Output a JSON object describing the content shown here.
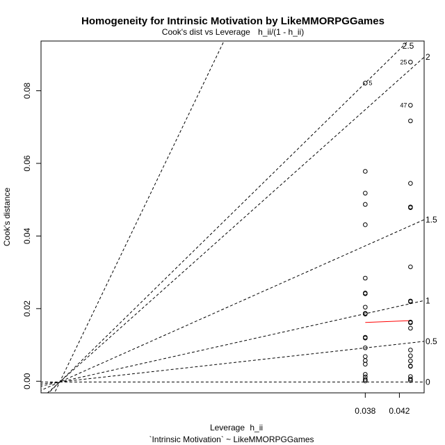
{
  "chart_data": {
    "type": "scatter",
    "title": "Homogeneity for Intrinsic Motivation by LikeMMORPGGames",
    "subtitle_main": "Cook's dist vs Leverage",
    "subtitle_formula": "h_ii/(1 - h_ii)",
    "xlabel_main": "Leverage",
    "xlabel_sub": "h_ii",
    "ylabel": "Cook's distance",
    "caption": "`Intrinsic Motivation` ~ LikeMMORPGGames",
    "xlim": [
      0.0,
      0.0449
    ],
    "ylim": [
      -0.0032,
      0.0937
    ],
    "x_ticks": [
      {
        "value": 0.038,
        "label": "0.038"
      },
      {
        "value": 0.042,
        "label": "0.042"
      }
    ],
    "y_ticks": [
      {
        "value": 0.0,
        "label": "0.00"
      },
      {
        "value": 0.02,
        "label": "0.02"
      },
      {
        "value": 0.04,
        "label": "0.04"
      },
      {
        "value": 0.06,
        "label": "0.06"
      },
      {
        "value": 0.08,
        "label": "0.08"
      }
    ],
    "contours": [
      {
        "label": "0",
        "slope": 0.0
      },
      {
        "label": "0.5",
        "slope": 0.262
      },
      {
        "label": "1",
        "slope": 0.525
      },
      {
        "label": "1.5",
        "slope": 1.047
      },
      {
        "label": "2",
        "slope": 2.095
      },
      {
        "label": "2.5",
        "slope": 2.3
      },
      {
        "label": "",
        "slope": 4.88
      }
    ],
    "smoother": {
      "color": "#ff0000",
      "x": [
        0.038,
        0.0433
      ],
      "y": [
        0.0162,
        0.0167
      ]
    },
    "points": [
      {
        "x": 0.038,
        "y": 0.0821,
        "label": "5"
      },
      {
        "x": 0.038,
        "y": 0.0578
      },
      {
        "x": 0.038,
        "y": 0.0518
      },
      {
        "x": 0.038,
        "y": 0.0487
      },
      {
        "x": 0.038,
        "y": 0.0431
      },
      {
        "x": 0.038,
        "y": 0.0284
      },
      {
        "x": 0.038,
        "y": 0.0243
      },
      {
        "x": 0.038,
        "y": 0.0241
      },
      {
        "x": 0.038,
        "y": 0.0204
      },
      {
        "x": 0.038,
        "y": 0.0187
      },
      {
        "x": 0.038,
        "y": 0.0185
      },
      {
        "x": 0.038,
        "y": 0.0121
      },
      {
        "x": 0.038,
        "y": 0.0119
      },
      {
        "x": 0.038,
        "y": 0.0092
      },
      {
        "x": 0.038,
        "y": 0.0068
      },
      {
        "x": 0.038,
        "y": 0.0057
      },
      {
        "x": 0.038,
        "y": 0.0047
      },
      {
        "x": 0.038,
        "y": 0.0019
      },
      {
        "x": 0.038,
        "y": 0.0012
      },
      {
        "x": 0.038,
        "y": 0.0005
      },
      {
        "x": 0.038,
        "y": 0.0001
      },
      {
        "x": 0.0433,
        "y": 0.0879,
        "label": "25"
      },
      {
        "x": 0.0433,
        "y": 0.076,
        "label": "47"
      },
      {
        "x": 0.0433,
        "y": 0.0717
      },
      {
        "x": 0.0433,
        "y": 0.0545
      },
      {
        "x": 0.0433,
        "y": 0.048
      },
      {
        "x": 0.0433,
        "y": 0.0478
      },
      {
        "x": 0.0433,
        "y": 0.0315
      },
      {
        "x": 0.0433,
        "y": 0.0221
      },
      {
        "x": 0.0433,
        "y": 0.0219
      },
      {
        "x": 0.0433,
        "y": 0.0163
      },
      {
        "x": 0.0433,
        "y": 0.0161
      },
      {
        "x": 0.0433,
        "y": 0.0146
      },
      {
        "x": 0.0433,
        "y": 0.0086
      },
      {
        "x": 0.0433,
        "y": 0.007
      },
      {
        "x": 0.0433,
        "y": 0.0056
      },
      {
        "x": 0.0433,
        "y": 0.0042
      },
      {
        "x": 0.0433,
        "y": 0.0041
      },
      {
        "x": 0.0433,
        "y": 0.0013
      },
      {
        "x": 0.0433,
        "y": 0.0006
      },
      {
        "x": 0.0433,
        "y": 0.0002
      }
    ],
    "grid": false
  }
}
